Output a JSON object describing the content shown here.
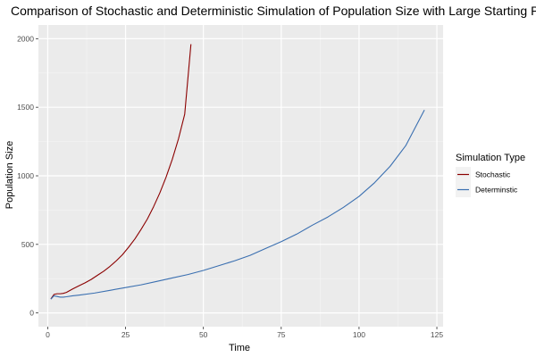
{
  "chart_data": {
    "type": "line",
    "title": "Comparison of Stochastic and Deterministic Simulation of Population Size with Large Starting P",
    "xlabel": "Time",
    "ylabel": "Population Size",
    "xlim": [
      -3,
      127
    ],
    "ylim": [
      -100,
      2100
    ],
    "x_ticks": [
      0,
      25,
      50,
      75,
      100,
      125
    ],
    "y_ticks": [
      0,
      500,
      1000,
      1500,
      2000
    ],
    "grid": true,
    "legend": {
      "title": "Simulation Type",
      "position": "right"
    },
    "series": [
      {
        "name": "Stochastic",
        "color": "#8b0000",
        "x": [
          1,
          2,
          3,
          4,
          5,
          6,
          8,
          10,
          12,
          14,
          16,
          18,
          20,
          22,
          24,
          26,
          28,
          30,
          32,
          34,
          36,
          38,
          40,
          42,
          44,
          46
        ],
        "y": [
          102,
          135,
          140,
          140,
          143,
          150,
          175,
          198,
          220,
          245,
          275,
          305,
          340,
          380,
          425,
          480,
          540,
          610,
          685,
          775,
          875,
          990,
          1120,
          1270,
          1450,
          1960
        ]
      },
      {
        "name": "Determinstic",
        "color": "#3a6fb0",
        "x": [
          1,
          2,
          3,
          4,
          5,
          6,
          8,
          10,
          15,
          20,
          25,
          30,
          35,
          40,
          45,
          50,
          55,
          60,
          65,
          70,
          75,
          80,
          85,
          90,
          95,
          100,
          105,
          110,
          115,
          121
        ],
        "y": [
          100,
          125,
          120,
          115,
          115,
          118,
          125,
          130,
          145,
          165,
          185,
          205,
          230,
          255,
          280,
          310,
          345,
          380,
          420,
          470,
          520,
          575,
          640,
          700,
          770,
          850,
          950,
          1070,
          1220,
          1480
        ]
      }
    ]
  }
}
